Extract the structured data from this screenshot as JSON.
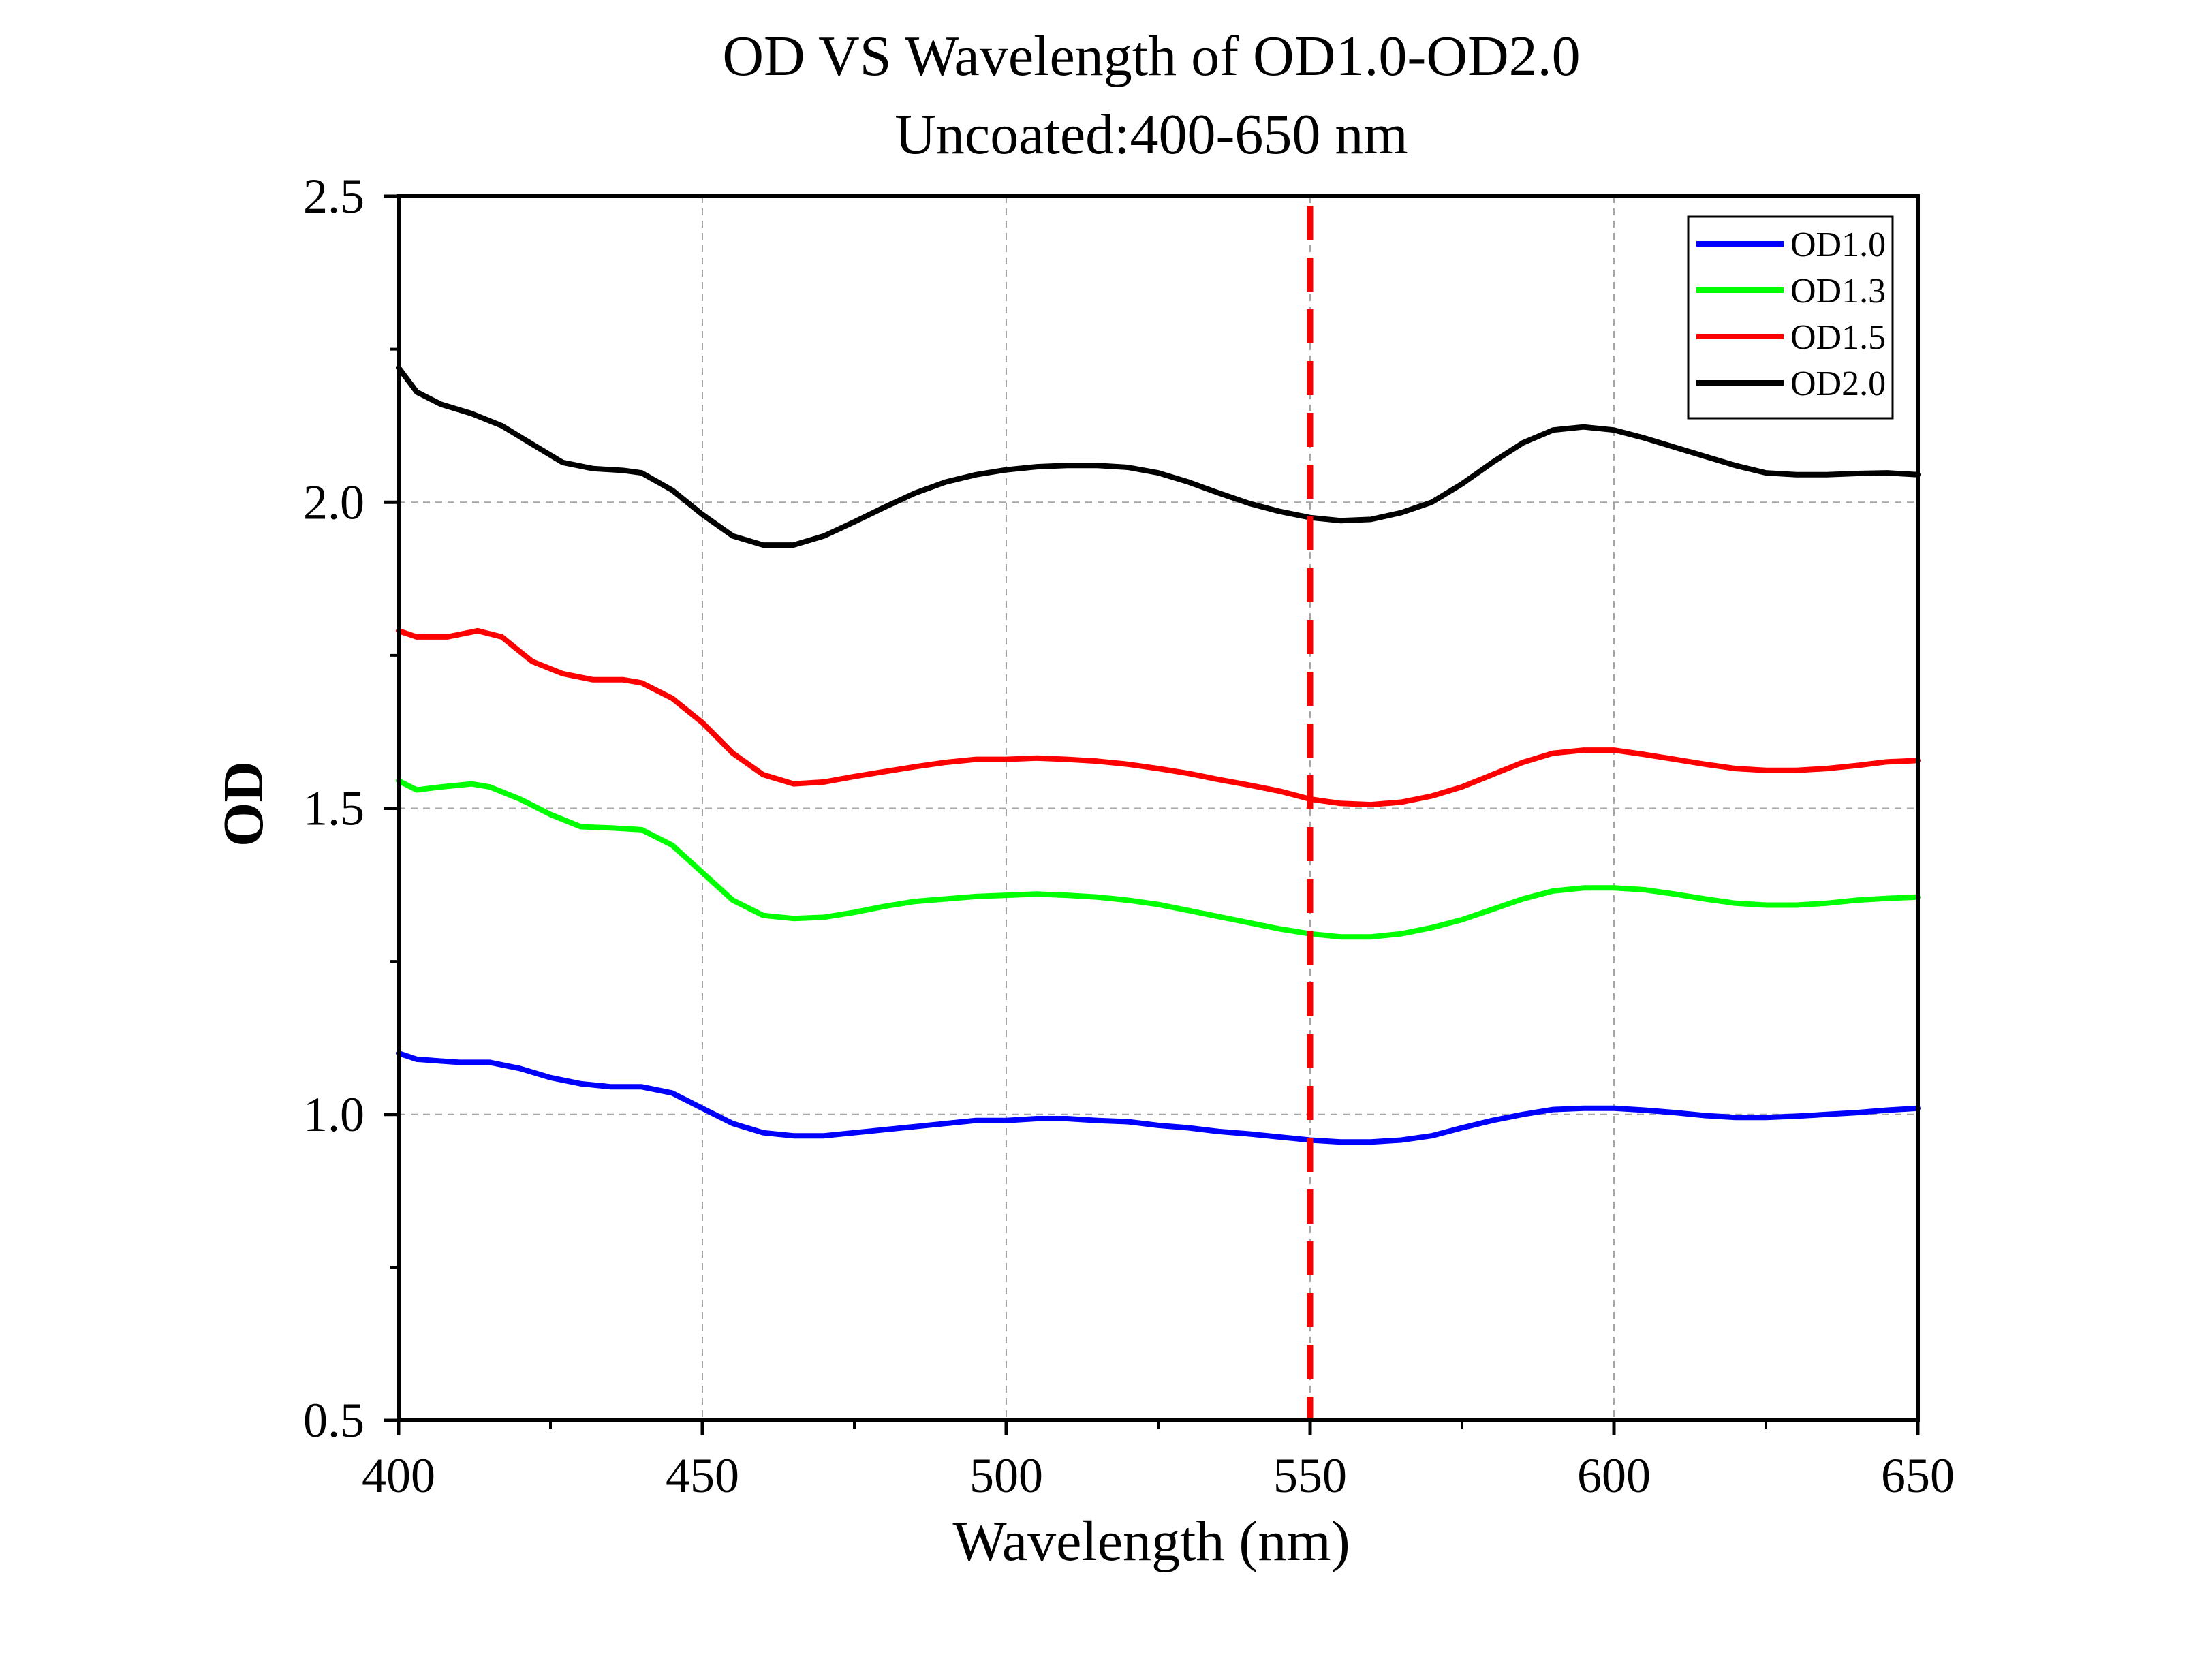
{
  "chart_data": {
    "type": "line",
    "title": "OD VS Wavelength of OD1.0-OD2.0",
    "subtitle": "Uncoated:400-650 nm",
    "xlabel": "Wavelength (nm)",
    "ylabel": "OD",
    "xlim": [
      400,
      650
    ],
    "ylim": [
      0.5,
      2.5
    ],
    "x_ticks": [
      400,
      450,
      500,
      550,
      600,
      650
    ],
    "y_ticks": [
      0.5,
      1.0,
      1.5,
      2.0,
      2.5
    ],
    "x_tick_labels": [
      "400",
      "450",
      "500",
      "550",
      "600",
      "650"
    ],
    "y_tick_labels": [
      "0.5",
      "1.0",
      "1.5",
      "2.0",
      "2.5"
    ],
    "grid": true,
    "legend_position": "top-right",
    "reference_line": {
      "x": 550,
      "color": "#ff0000",
      "style": "dashed"
    },
    "series": [
      {
        "name": "OD1.0",
        "color": "#0000ff",
        "x": [
          400,
          403,
          410,
          415,
          420,
          425,
          430,
          435,
          440,
          445,
          450,
          455,
          460,
          465,
          470,
          475,
          480,
          485,
          490,
          495,
          500,
          505,
          510,
          515,
          520,
          525,
          530,
          535,
          540,
          545,
          550,
          555,
          560,
          565,
          570,
          575,
          580,
          585,
          590,
          595,
          600,
          605,
          610,
          615,
          620,
          625,
          630,
          635,
          640,
          645,
          650
        ],
        "values": [
          1.1,
          1.09,
          1.085,
          1.085,
          1.075,
          1.06,
          1.05,
          1.045,
          1.045,
          1.035,
          1.01,
          0.985,
          0.97,
          0.965,
          0.965,
          0.97,
          0.975,
          0.98,
          0.985,
          0.99,
          0.99,
          0.993,
          0.993,
          0.99,
          0.988,
          0.982,
          0.978,
          0.972,
          0.968,
          0.963,
          0.958,
          0.955,
          0.955,
          0.958,
          0.965,
          0.978,
          0.99,
          1.0,
          1.008,
          1.01,
          1.01,
          1.007,
          1.003,
          0.998,
          0.995,
          0.995,
          0.997,
          1.0,
          1.003,
          1.007,
          1.01
        ]
      },
      {
        "name": "OD1.3",
        "color": "#00ff00",
        "x": [
          400,
          403,
          407,
          412,
          415,
          420,
          425,
          430,
          435,
          440,
          445,
          450,
          455,
          460,
          465,
          470,
          475,
          480,
          485,
          490,
          495,
          500,
          505,
          510,
          515,
          520,
          525,
          530,
          535,
          540,
          545,
          550,
          555,
          560,
          565,
          570,
          575,
          580,
          585,
          590,
          595,
          600,
          605,
          610,
          615,
          620,
          625,
          630,
          635,
          640,
          645,
          650
        ],
        "values": [
          1.545,
          1.53,
          1.535,
          1.54,
          1.535,
          1.515,
          1.49,
          1.47,
          1.468,
          1.465,
          1.44,
          1.395,
          1.35,
          1.325,
          1.32,
          1.322,
          1.33,
          1.34,
          1.348,
          1.352,
          1.356,
          1.358,
          1.36,
          1.358,
          1.355,
          1.35,
          1.343,
          1.333,
          1.323,
          1.313,
          1.303,
          1.295,
          1.29,
          1.29,
          1.295,
          1.305,
          1.318,
          1.335,
          1.352,
          1.365,
          1.37,
          1.37,
          1.367,
          1.36,
          1.352,
          1.345,
          1.342,
          1.342,
          1.345,
          1.35,
          1.353,
          1.355
        ]
      },
      {
        "name": "OD1.5",
        "color": "#ff0000",
        "x": [
          400,
          403,
          408,
          413,
          417,
          422,
          427,
          432,
          437,
          440,
          445,
          450,
          455,
          460,
          465,
          470,
          475,
          480,
          485,
          490,
          495,
          500,
          505,
          510,
          515,
          520,
          525,
          530,
          535,
          540,
          545,
          550,
          555,
          560,
          565,
          570,
          575,
          580,
          585,
          590,
          595,
          600,
          605,
          610,
          615,
          620,
          625,
          630,
          635,
          640,
          645,
          650
        ],
        "values": [
          1.79,
          1.78,
          1.78,
          1.79,
          1.78,
          1.74,
          1.72,
          1.71,
          1.71,
          1.705,
          1.68,
          1.64,
          1.59,
          1.555,
          1.54,
          1.543,
          1.552,
          1.56,
          1.568,
          1.575,
          1.58,
          1.58,
          1.582,
          1.58,
          1.577,
          1.572,
          1.565,
          1.557,
          1.547,
          1.538,
          1.528,
          1.515,
          1.508,
          1.506,
          1.51,
          1.52,
          1.535,
          1.555,
          1.575,
          1.59,
          1.595,
          1.595,
          1.588,
          1.58,
          1.572,
          1.565,
          1.562,
          1.562,
          1.565,
          1.57,
          1.576,
          1.578
        ]
      },
      {
        "name": "OD2.0",
        "color": "#000000",
        "x": [
          400,
          403,
          407,
          412,
          417,
          422,
          427,
          432,
          437,
          440,
          445,
          450,
          455,
          460,
          465,
          470,
          475,
          480,
          485,
          490,
          495,
          500,
          505,
          510,
          515,
          520,
          525,
          530,
          535,
          540,
          545,
          550,
          555,
          560,
          565,
          570,
          575,
          580,
          585,
          590,
          595,
          600,
          605,
          610,
          615,
          620,
          625,
          630,
          635,
          640,
          645,
          650
        ],
        "values": [
          2.22,
          2.18,
          2.16,
          2.145,
          2.125,
          2.095,
          2.065,
          2.055,
          2.052,
          2.048,
          2.02,
          1.98,
          1.945,
          1.93,
          1.93,
          1.945,
          1.968,
          1.992,
          2.015,
          2.033,
          2.045,
          2.053,
          2.058,
          2.06,
          2.06,
          2.057,
          2.048,
          2.033,
          2.015,
          1.998,
          1.985,
          1.975,
          1.97,
          1.972,
          1.983,
          2.0,
          2.03,
          2.065,
          2.097,
          2.118,
          2.123,
          2.118,
          2.105,
          2.09,
          2.075,
          2.06,
          2.048,
          2.045,
          2.045,
          2.047,
          2.048,
          2.045
        ]
      }
    ]
  }
}
